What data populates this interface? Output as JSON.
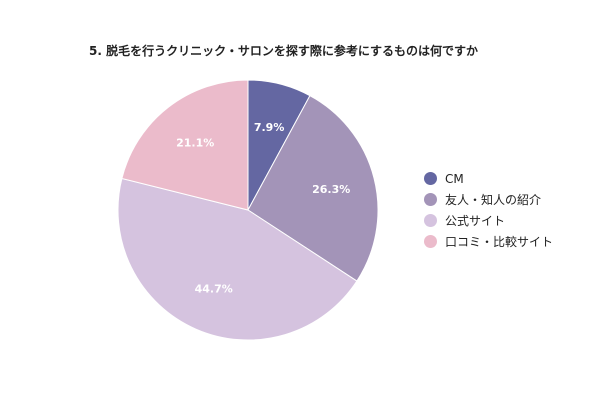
{
  "chart_data": {
    "type": "pie",
    "title": "5. 脱毛を行うクリニック・サロンを探す際に参考にするものは何ですか",
    "categories": [
      "CM",
      "友人・知人の紹介",
      "公式サイト",
      "口コミ・比較サイト"
    ],
    "values": [
      7.9,
      26.3,
      44.7,
      21.1
    ],
    "data_labels": [
      "7.9%",
      "26.3%",
      "44.7%",
      "21.1%"
    ],
    "colors": [
      "#6467a2",
      "#a394b8",
      "#d5c3df",
      "#ebbbcb"
    ],
    "start_angle_deg": 0,
    "direction": "clockwise",
    "legend_position": "right"
  }
}
